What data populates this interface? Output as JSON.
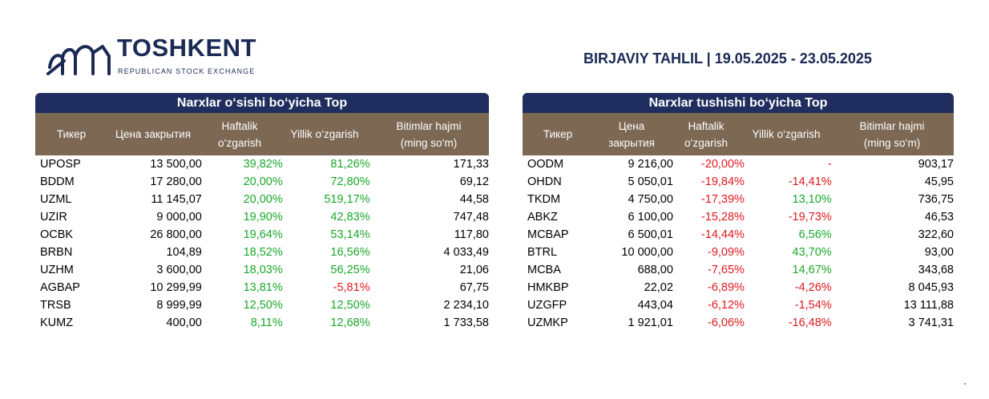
{
  "header": {
    "logo_name": "TOSHKENT",
    "logo_subtitle": "REPUBLICAN STOCK EXCHANGE",
    "report_title": "BIRJAVIY TAHLIL | 19.05.2025 - 23.05.2025",
    "brand_color": "#1b2a55"
  },
  "gainers": {
    "title": "Narxlar o‘sishi bo‘yicha Top",
    "columns": {
      "ticker": "Тикер",
      "close_price": "Цена закрытия",
      "weekly_change_1": "Haftalik",
      "weekly_change_2": "o‘zgarish",
      "yearly_change": "Yillik o‘zgarish",
      "volume_1": "Bitimlar hajmi",
      "volume_2": "(ming so‘m)"
    },
    "rows": [
      {
        "ticker": "UPOSP",
        "close": "13 500,00",
        "weekly": "39,82%",
        "weekly_dir": "pos",
        "yearly": "81,26%",
        "yearly_dir": "pos",
        "volume": "171,33"
      },
      {
        "ticker": "BDDM",
        "close": "17 280,00",
        "weekly": "20,00%",
        "weekly_dir": "pos",
        "yearly": "72,80%",
        "yearly_dir": "pos",
        "volume": "69,12"
      },
      {
        "ticker": "UZML",
        "close": "11 145,07",
        "weekly": "20,00%",
        "weekly_dir": "pos",
        "yearly": "519,17%",
        "yearly_dir": "pos",
        "volume": "44,58"
      },
      {
        "ticker": "UZIR",
        "close": "9 000,00",
        "weekly": "19,90%",
        "weekly_dir": "pos",
        "yearly": "42,83%",
        "yearly_dir": "pos",
        "volume": "747,48"
      },
      {
        "ticker": "OCBK",
        "close": "26 800,00",
        "weekly": "19,64%",
        "weekly_dir": "pos",
        "yearly": "53,14%",
        "yearly_dir": "pos",
        "volume": "117,80"
      },
      {
        "ticker": "BRBN",
        "close": "104,89",
        "weekly": "18,52%",
        "weekly_dir": "pos",
        "yearly": "16,56%",
        "yearly_dir": "pos",
        "volume": "4 033,49"
      },
      {
        "ticker": "UZHM",
        "close": "3 600,00",
        "weekly": "18,03%",
        "weekly_dir": "pos",
        "yearly": "56,25%",
        "yearly_dir": "pos",
        "volume": "21,06"
      },
      {
        "ticker": "AGBAP",
        "close": "10 299,99",
        "weekly": "13,81%",
        "weekly_dir": "pos",
        "yearly": "-5,81%",
        "yearly_dir": "neg",
        "volume": "67,75"
      },
      {
        "ticker": "TRSB",
        "close": "8 999,99",
        "weekly": "12,50%",
        "weekly_dir": "pos",
        "yearly": "12,50%",
        "yearly_dir": "pos",
        "volume": "2 234,10"
      },
      {
        "ticker": "KUMZ",
        "close": "400,00",
        "weekly": "8,11%",
        "weekly_dir": "pos",
        "yearly": "12,68%",
        "yearly_dir": "pos",
        "volume": "1 733,58"
      }
    ]
  },
  "losers": {
    "title": "Narxlar tushishi bo‘yicha Top",
    "columns": {
      "ticker": "Тикер",
      "close_price_1": "Цена",
      "close_price_2": "закрытия",
      "weekly_change_1": "Haftalik",
      "weekly_change_2": "o‘zgarish",
      "yearly_change": "Yillik o‘zgarish",
      "volume_1": "Bitimlar hajmi",
      "volume_2": "(ming so‘m)"
    },
    "rows": [
      {
        "ticker": "OODM",
        "close": "9 216,00",
        "weekly": "-20,00%",
        "weekly_dir": "neg",
        "yearly": "-",
        "yearly_dir": "neg",
        "volume": "903,17"
      },
      {
        "ticker": "OHDN",
        "close": "5 050,01",
        "weekly": "-19,84%",
        "weekly_dir": "neg",
        "yearly": "-14,41%",
        "yearly_dir": "neg",
        "volume": "45,95"
      },
      {
        "ticker": "TKDM",
        "close": "4 750,00",
        "weekly": "-17,39%",
        "weekly_dir": "neg",
        "yearly": "13,10%",
        "yearly_dir": "pos",
        "volume": "736,75"
      },
      {
        "ticker": "ABKZ",
        "close": "6 100,00",
        "weekly": "-15,28%",
        "weekly_dir": "neg",
        "yearly": "-19,73%",
        "yearly_dir": "neg",
        "volume": "46,53"
      },
      {
        "ticker": "MCBAP",
        "close": "6 500,01",
        "weekly": "-14,44%",
        "weekly_dir": "neg",
        "yearly": "6,56%",
        "yearly_dir": "pos",
        "volume": "322,60"
      },
      {
        "ticker": "BTRL",
        "close": "10 000,00",
        "weekly": "-9,09%",
        "weekly_dir": "neg",
        "yearly": "43,70%",
        "yearly_dir": "pos",
        "volume": "93,00"
      },
      {
        "ticker": "MCBA",
        "close": "688,00",
        "weekly": "-7,65%",
        "weekly_dir": "neg",
        "yearly": "14,67%",
        "yearly_dir": "pos",
        "volume": "343,68"
      },
      {
        "ticker": "HMKBP",
        "close": "22,02",
        "weekly": "-6,89%",
        "weekly_dir": "neg",
        "yearly": "-4,26%",
        "yearly_dir": "neg",
        "volume": "8 045,93"
      },
      {
        "ticker": "UZGFP",
        "close": "443,04",
        "weekly": "-6,12%",
        "weekly_dir": "neg",
        "yearly": "-1,54%",
        "yearly_dir": "neg",
        "volume": "13 111,88"
      },
      {
        "ticker": "UZMKP",
        "close": "1 921,01",
        "weekly": "-6,06%",
        "weekly_dir": "neg",
        "yearly": "-16,48%",
        "yearly_dir": "neg",
        "volume": "3 741,31"
      }
    ]
  },
  "colors": {
    "title_bar": "#1f2e5e",
    "header_bg": "#7c6853",
    "positive": "#1aa82a",
    "negative": "#e0191e"
  }
}
